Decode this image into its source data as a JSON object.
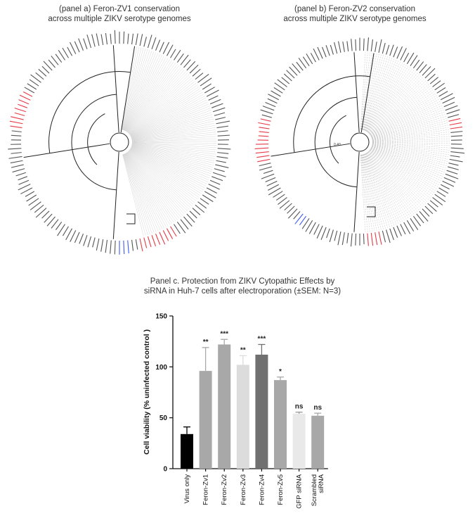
{
  "panel_a": {
    "title_line1": "(panel a) Feron-ZV1 conservation",
    "title_line2": "across multiple ZIKV serotype genomes"
  },
  "panel_b": {
    "title_line1": "(panel b) Feron-ZV2 conservation",
    "title_line2": "across multiple ZIKV serotype genomes",
    "scale_label": "0.40"
  },
  "colors": {
    "black": "#000000",
    "gray_mid": "#a8a8a8",
    "gray_light": "#dcdcdc",
    "gray_dark": "#707070",
    "gray_lighter": "#e9e9e9",
    "highlight_red": "#e63946",
    "highlight_blue": "#3d5af1"
  },
  "chart_data": {
    "type": "bar",
    "title_line1": "Panel c. Protection from ZIKV Cytopathic Effects by",
    "title_line2": "siRNA in Huh-7 cells after electroporation (±SEM: N=3)",
    "ylabel": "Cell viability  (% uninfected control )",
    "xlabel": "",
    "ylim": [
      0,
      150
    ],
    "yticks": [
      "0",
      "50",
      "100",
      "150"
    ],
    "categories": [
      "Virus only",
      "Feron-Zv1",
      "Feron-Zv2",
      "Feron-Zv3",
      "Feron-Zv4",
      "Feron-Zv5",
      "GFP siRNA",
      "Scrambled siRNA"
    ],
    "values": [
      34,
      96,
      122,
      102,
      112,
      87,
      54,
      52
    ],
    "errors": [
      7,
      23,
      5,
      9,
      10,
      3,
      1.5,
      2.5
    ],
    "significance": [
      "",
      "**",
      "***",
      "**",
      "***",
      "*",
      "ns",
      "ns"
    ],
    "bar_colors": [
      "#000000",
      "#a8a8a8",
      "#a8a8a8",
      "#dcdcdc",
      "#707070",
      "#a8a8a8",
      "#e9e9e9",
      "#a8a8a8"
    ]
  }
}
